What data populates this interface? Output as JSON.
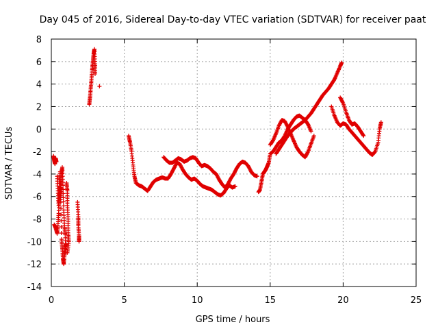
{
  "chart_data": {
    "type": "scatter",
    "title": "Day 045 of 2016, Sidereal Day-to-day VTEC variation (SDTVAR) for receiver paat",
    "xlabel": "GPS time / hours",
    "ylabel": "SDTVAR / TECUs",
    "xlim": [
      0,
      25
    ],
    "ylim": [
      -14,
      8
    ],
    "xticks": [
      0,
      5,
      10,
      15,
      20,
      25
    ],
    "yticks": [
      -14,
      -12,
      -10,
      -8,
      -6,
      -4,
      -2,
      0,
      2,
      4,
      6,
      8
    ],
    "grid": true,
    "marker": "plus",
    "color": "#e00000",
    "series": [
      {
        "segments": [
          [
            [
              0.15,
              -2.4
            ],
            [
              0.2,
              -2.8
            ],
            [
              0.25,
              -3.1
            ],
            [
              0.3,
              -2.6
            ],
            [
              0.35,
              -2.9
            ]
          ],
          [
            [
              0.2,
              -8.5
            ],
            [
              0.3,
              -8.8
            ],
            [
              0.4,
              -9.3
            ],
            [
              0.45,
              -8.6
            ],
            [
              0.5,
              -7.5
            ],
            [
              0.55,
              -6.0
            ],
            [
              0.6,
              -5.2
            ],
            [
              0.65,
              -6.5
            ],
            [
              0.7,
              -9.8
            ],
            [
              0.75,
              -10.6
            ],
            [
              0.8,
              -11.5
            ],
            [
              0.85,
              -12.0
            ],
            [
              0.9,
              -11.2
            ],
            [
              0.95,
              -10.5
            ],
            [
              1.0,
              -10.2
            ]
          ],
          [
            [
              0.4,
              -4.2
            ],
            [
              0.45,
              -5.5
            ],
            [
              0.5,
              -6.8
            ],
            [
              0.55,
              -4.8
            ],
            [
              0.6,
              -3.8
            ],
            [
              0.65,
              -5.9
            ],
            [
              0.7,
              -4.0
            ],
            [
              0.75,
              -3.4
            ],
            [
              0.8,
              -5.0
            ],
            [
              0.85,
              -7.2
            ],
            [
              0.9,
              -8.6
            ],
            [
              0.95,
              -9.4
            ],
            [
              1.0,
              -11.0
            ]
          ],
          [
            [
              1.05,
              -4.8
            ],
            [
              1.1,
              -5.5
            ],
            [
              1.1,
              -6.8
            ],
            [
              1.15,
              -8.0
            ],
            [
              1.15,
              -9.2
            ],
            [
              1.2,
              -10.0
            ],
            [
              1.1,
              -11.0
            ]
          ],
          [
            [
              1.8,
              -6.5
            ],
            [
              1.85,
              -7.8
            ],
            [
              1.85,
              -8.6
            ],
            [
              1.9,
              -9.5
            ],
            [
              1.9,
              -10.0
            ]
          ],
          [
            [
              2.6,
              2.2
            ],
            [
              2.65,
              2.8
            ],
            [
              2.7,
              3.6
            ],
            [
              2.75,
              4.4
            ],
            [
              2.8,
              5.3
            ],
            [
              2.85,
              6.0
            ],
            [
              2.9,
              6.7
            ],
            [
              2.95,
              7.1
            ],
            [
              3.0,
              5.8
            ],
            [
              3.0,
              4.9
            ]
          ],
          [
            [
              3.3,
              3.8
            ]
          ],
          [
            [
              5.3,
              -0.6
            ],
            [
              5.4,
              -1.2
            ],
            [
              5.5,
              -2.0
            ],
            [
              5.6,
              -3.2
            ],
            [
              5.7,
              -4.2
            ],
            [
              5.8,
              -4.8
            ],
            [
              6.0,
              -5.0
            ],
            [
              6.2,
              -5.1
            ],
            [
              6.4,
              -5.3
            ],
            [
              6.6,
              -5.5
            ],
            [
              6.8,
              -5.1
            ],
            [
              7.0,
              -4.7
            ],
            [
              7.2,
              -4.5
            ],
            [
              7.4,
              -4.4
            ],
            [
              7.6,
              -4.3
            ],
            [
              7.8,
              -4.4
            ],
            [
              8.0,
              -4.4
            ],
            [
              8.2,
              -4.0
            ],
            [
              8.4,
              -3.5
            ],
            [
              8.6,
              -3.0
            ],
            [
              8.8,
              -3.1
            ],
            [
              9.0,
              -3.6
            ],
            [
              9.2,
              -4.0
            ],
            [
              9.4,
              -4.3
            ],
            [
              9.6,
              -4.5
            ],
            [
              9.8,
              -4.4
            ],
            [
              10.0,
              -4.6
            ],
            [
              10.2,
              -4.9
            ],
            [
              10.4,
              -5.1
            ],
            [
              10.6,
              -5.2
            ],
            [
              10.8,
              -5.3
            ],
            [
              11.0,
              -5.4
            ],
            [
              11.2,
              -5.6
            ],
            [
              11.4,
              -5.8
            ],
            [
              11.6,
              -5.9
            ],
            [
              11.8,
              -5.7
            ],
            [
              12.0,
              -5.3
            ],
            [
              12.2,
              -5.0
            ],
            [
              12.4,
              -5.2
            ],
            [
              12.6,
              -5.1
            ]
          ],
          [
            [
              7.7,
              -2.5
            ],
            [
              7.9,
              -2.8
            ],
            [
              8.1,
              -3.0
            ],
            [
              8.3,
              -3.0
            ],
            [
              8.5,
              -2.8
            ],
            [
              8.7,
              -2.6
            ],
            [
              8.9,
              -2.7
            ],
            [
              9.1,
              -2.9
            ],
            [
              9.3,
              -2.8
            ],
            [
              9.5,
              -2.6
            ],
            [
              9.7,
              -2.5
            ],
            [
              9.9,
              -2.6
            ],
            [
              10.1,
              -3.0
            ],
            [
              10.3,
              -3.3
            ],
            [
              10.5,
              -3.2
            ],
            [
              10.7,
              -3.3
            ],
            [
              10.9,
              -3.5
            ],
            [
              11.1,
              -3.8
            ],
            [
              11.3,
              -4.0
            ],
            [
              11.5,
              -4.5
            ],
            [
              11.7,
              -4.9
            ],
            [
              11.9,
              -5.2
            ],
            [
              12.1,
              -4.9
            ],
            [
              12.3,
              -4.4
            ],
            [
              12.5,
              -4.0
            ],
            [
              12.7,
              -3.5
            ],
            [
              12.9,
              -3.1
            ],
            [
              13.1,
              -2.9
            ],
            [
              13.3,
              -3.0
            ],
            [
              13.5,
              -3.3
            ],
            [
              13.7,
              -3.8
            ],
            [
              13.9,
              -4.1
            ],
            [
              14.1,
              -4.2
            ]
          ],
          [
            [
              14.2,
              -5.6
            ],
            [
              14.3,
              -5.4
            ],
            [
              14.4,
              -4.7
            ],
            [
              14.5,
              -4.0
            ],
            [
              14.6,
              -3.8
            ],
            [
              14.7,
              -3.6
            ],
            [
              14.8,
              -3.3
            ],
            [
              14.9,
              -3.0
            ],
            [
              15.0,
              -2.2
            ],
            [
              15.2,
              -2.0
            ],
            [
              15.4,
              -1.6
            ],
            [
              15.6,
              -1.2
            ],
            [
              15.8,
              -1.0
            ],
            [
              16.0,
              -0.6
            ],
            [
              16.2,
              0.0
            ],
            [
              16.4,
              0.4
            ],
            [
              16.6,
              0.8
            ],
            [
              16.8,
              1.1
            ],
            [
              17.0,
              1.2
            ],
            [
              17.2,
              1.0
            ],
            [
              17.4,
              0.8
            ],
            [
              17.6,
              0.4
            ],
            [
              17.8,
              -0.2
            ]
          ],
          [
            [
              15.0,
              -1.4
            ],
            [
              15.2,
              -1.0
            ],
            [
              15.4,
              -0.4
            ],
            [
              15.6,
              0.3
            ],
            [
              15.8,
              0.8
            ],
            [
              16.0,
              0.7
            ],
            [
              16.2,
              0.2
            ],
            [
              16.4,
              -0.4
            ],
            [
              16.6,
              -1.0
            ],
            [
              16.8,
              -1.6
            ],
            [
              17.0,
              -2.0
            ],
            [
              17.2,
              -2.3
            ],
            [
              17.4,
              -2.5
            ],
            [
              17.6,
              -2.0
            ],
            [
              17.8,
              -1.3
            ],
            [
              18.0,
              -0.6
            ]
          ],
          [
            [
              15.4,
              -2.2
            ],
            [
              15.6,
              -1.8
            ],
            [
              15.8,
              -1.4
            ],
            [
              16.0,
              -1.0
            ],
            [
              16.2,
              -0.6
            ],
            [
              16.4,
              -0.3
            ],
            [
              16.6,
              0.0
            ],
            [
              16.8,
              0.2
            ],
            [
              17.0,
              0.4
            ],
            [
              17.2,
              0.6
            ],
            [
              17.4,
              0.8
            ],
            [
              17.6,
              1.1
            ],
            [
              17.8,
              1.4
            ],
            [
              18.0,
              1.8
            ],
            [
              18.2,
              2.2
            ],
            [
              18.4,
              2.6
            ],
            [
              18.6,
              3.0
            ],
            [
              18.8,
              3.3
            ],
            [
              19.0,
              3.6
            ],
            [
              19.2,
              4.0
            ],
            [
              19.4,
              4.4
            ],
            [
              19.6,
              5.0
            ],
            [
              19.8,
              5.6
            ],
            [
              19.9,
              5.9
            ]
          ],
          [
            [
              19.2,
              2.0
            ],
            [
              19.4,
              1.2
            ],
            [
              19.6,
              0.6
            ],
            [
              19.8,
              0.3
            ],
            [
              20.0,
              0.5
            ],
            [
              20.2,
              0.4
            ],
            [
              20.4,
              0.0
            ],
            [
              20.6,
              -0.3
            ],
            [
              20.8,
              -0.6
            ],
            [
              21.0,
              -0.9
            ],
            [
              21.2,
              -1.2
            ],
            [
              21.4,
              -1.5
            ],
            [
              21.6,
              -1.8
            ],
            [
              21.8,
              -2.1
            ],
            [
              22.0,
              -2.3
            ],
            [
              22.2,
              -2.0
            ],
            [
              22.4,
              -1.2
            ],
            [
              22.5,
              0.0
            ],
            [
              22.6,
              0.6
            ]
          ],
          [
            [
              19.8,
              2.8
            ],
            [
              20.0,
              2.3
            ],
            [
              20.2,
              1.5
            ],
            [
              20.4,
              0.8
            ],
            [
              20.6,
              0.4
            ],
            [
              20.8,
              0.5
            ],
            [
              21.0,
              0.2
            ],
            [
              21.2,
              -0.2
            ],
            [
              21.4,
              -0.6
            ]
          ]
        ]
      }
    ]
  }
}
